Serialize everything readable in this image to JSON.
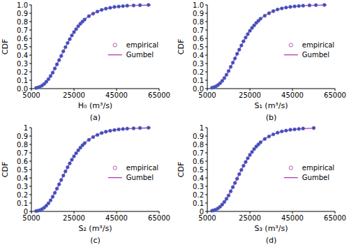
{
  "chart_data": [
    {
      "type": "line",
      "title": "(a)",
      "x_label": "H₀ (m³/s)",
      "y_label": "CDF",
      "xlim": [
        5000,
        65000
      ],
      "xticks": [
        5000,
        25000,
        45000,
        65000
      ],
      "ylim": [
        0,
        1
      ],
      "yticks": [
        {
          "value": 0,
          "label": "0.0"
        },
        0.1,
        0.2,
        0.3,
        0.4,
        0.5,
        0.6,
        0.7,
        0.8,
        0.9,
        {
          "value": 1,
          "label": "1.0"
        }
      ],
      "grid": false,
      "legend": "right",
      "series": [
        {
          "name": "empirical",
          "type": "scatter",
          "marker": "circle",
          "color": "#3b4fb8",
          "x": [
            7200,
            8000,
            9000,
            10000,
            11000,
            12000,
            13000,
            14000,
            15000,
            16000,
            17000,
            18000,
            19000,
            20000,
            21000,
            22000,
            23000,
            24000,
            25000,
            26000,
            27000,
            28000,
            29000,
            30000,
            32000,
            34000,
            36000,
            38000,
            40000,
            42000,
            44000,
            46000,
            48000,
            50000,
            53000,
            56000,
            60000
          ],
          "values": [
            0.008,
            0.013,
            0.022,
            0.036,
            0.056,
            0.082,
            0.113,
            0.15,
            0.19,
            0.24,
            0.29,
            0.34,
            0.39,
            0.445,
            0.495,
            0.545,
            0.59,
            0.635,
            0.675,
            0.71,
            0.745,
            0.775,
            0.8,
            0.825,
            0.865,
            0.895,
            0.92,
            0.94,
            0.955,
            0.965,
            0.975,
            0.98,
            0.985,
            0.99,
            0.993,
            0.996,
            0.999
          ]
        },
        {
          "name": "Gumbel",
          "type": "line",
          "line_style": "solid",
          "color": "#b03cb0",
          "x": [
            7000,
            9000,
            11000,
            13000,
            15000,
            17000,
            19000,
            21000,
            23000,
            25000,
            27000,
            29000,
            31000,
            33000,
            35000,
            38000,
            41000,
            44000,
            47000,
            50000,
            54000,
            58000,
            61000
          ],
          "values": [
            0.006,
            0.021,
            0.054,
            0.111,
            0.192,
            0.29,
            0.394,
            0.497,
            0.591,
            0.674,
            0.743,
            0.8,
            0.846,
            0.882,
            0.91,
            0.94,
            0.961,
            0.974,
            0.983,
            0.989,
            0.994,
            0.996,
            0.998
          ]
        }
      ]
    },
    {
      "type": "line",
      "title": "(b)",
      "x_label": "S₁ (m³/s)",
      "y_label": "CDF",
      "xlim": [
        5000,
        65000
      ],
      "xticks": [
        5000,
        25000,
        45000,
        65000
      ],
      "ylim": [
        0,
        1
      ],
      "yticks": [
        {
          "value": 0,
          "label": "0.0"
        },
        0.1,
        0.2,
        0.3,
        0.4,
        0.5,
        0.6,
        0.7,
        0.8,
        0.9,
        {
          "value": 1,
          "label": "1.0"
        }
      ],
      "grid": false,
      "legend": "right",
      "series": [
        {
          "name": "empirical",
          "type": "scatter",
          "marker": "circle",
          "color": "#3b4fb8",
          "x": [
            7200,
            8000,
            9000,
            10000,
            11000,
            12000,
            13000,
            14000,
            15000,
            16000,
            17000,
            18000,
            19000,
            20000,
            21000,
            22000,
            23000,
            24000,
            25000,
            26000,
            27000,
            28000,
            29000,
            30000,
            32000,
            34000,
            36000,
            38000,
            40000,
            42000,
            44000,
            46000,
            48000,
            50000,
            53000,
            56000,
            60000
          ],
          "values": [
            0.01,
            0.016,
            0.026,
            0.042,
            0.064,
            0.092,
            0.126,
            0.165,
            0.21,
            0.26,
            0.31,
            0.36,
            0.415,
            0.465,
            0.515,
            0.565,
            0.61,
            0.65,
            0.69,
            0.725,
            0.755,
            0.785,
            0.81,
            0.835,
            0.87,
            0.9,
            0.925,
            0.945,
            0.958,
            0.968,
            0.976,
            0.982,
            0.986,
            0.99,
            0.994,
            0.997,
            0.999
          ]
        },
        {
          "name": "Gumbel",
          "type": "line",
          "line_style": "solid",
          "color": "#b03cb0",
          "x": [
            7000,
            9000,
            11000,
            13000,
            15000,
            17000,
            19000,
            21000,
            23000,
            25000,
            27000,
            29000,
            31000,
            33000,
            35000,
            38000,
            41000,
            44000,
            47000,
            50000,
            54000,
            58000,
            61000
          ],
          "values": [
            0.008,
            0.026,
            0.063,
            0.125,
            0.21,
            0.31,
            0.415,
            0.515,
            0.61,
            0.69,
            0.755,
            0.81,
            0.855,
            0.89,
            0.915,
            0.945,
            0.963,
            0.976,
            0.984,
            0.99,
            0.994,
            0.997,
            0.998
          ]
        }
      ]
    },
    {
      "type": "line",
      "title": "(c)",
      "x_label": "S₂ (m³/s)",
      "y_label": "CDF",
      "xlim": [
        5000,
        65000
      ],
      "xticks": [
        5000,
        25000,
        45000,
        65000
      ],
      "ylim": [
        0,
        1
      ],
      "yticks": [
        0,
        0.1,
        0.2,
        0.3,
        0.4,
        0.5,
        0.6,
        0.7,
        0.8,
        0.9,
        1
      ],
      "grid": false,
      "legend": "right",
      "series": [
        {
          "name": "empirical",
          "type": "scatter",
          "marker": "circle",
          "color": "#3b4fb8",
          "x": [
            7200,
            8000,
            9000,
            10000,
            11000,
            12000,
            13000,
            14000,
            15000,
            16000,
            17000,
            18000,
            19000,
            20000,
            21000,
            22000,
            23000,
            24000,
            25000,
            26000,
            27000,
            28000,
            29000,
            30000,
            32000,
            34000,
            36000,
            38000,
            40000,
            42000,
            44000,
            46000,
            48000,
            50000,
            53000,
            56000,
            60000
          ],
          "values": [
            0.004,
            0.008,
            0.015,
            0.027,
            0.044,
            0.068,
            0.097,
            0.133,
            0.175,
            0.222,
            0.272,
            0.323,
            0.375,
            0.428,
            0.478,
            0.527,
            0.573,
            0.617,
            0.658,
            0.695,
            0.73,
            0.761,
            0.79,
            0.815,
            0.855,
            0.888,
            0.913,
            0.936,
            0.952,
            0.963,
            0.972,
            0.979,
            0.984,
            0.988,
            0.992,
            0.996,
            0.999
          ]
        },
        {
          "name": "Gumbel",
          "type": "line",
          "line_style": "solid",
          "color": "#b03cb0",
          "x": [
            7000,
            9000,
            11000,
            13000,
            15000,
            17000,
            19000,
            21000,
            23000,
            25000,
            27000,
            29000,
            31000,
            33000,
            35000,
            38000,
            41000,
            44000,
            47000,
            50000,
            54000,
            58000,
            61000
          ],
          "values": [
            0.003,
            0.015,
            0.044,
            0.097,
            0.175,
            0.272,
            0.375,
            0.478,
            0.573,
            0.658,
            0.73,
            0.79,
            0.837,
            0.875,
            0.905,
            0.936,
            0.958,
            0.972,
            0.982,
            0.988,
            0.993,
            0.996,
            0.998
          ]
        }
      ]
    },
    {
      "type": "line",
      "title": "(d)",
      "x_label": "S₃ (m³/s)",
      "y_label": "CDF",
      "xlim": [
        5000,
        65000
      ],
      "xticks": [
        5000,
        25000,
        45000,
        65000
      ],
      "ylim": [
        0,
        1
      ],
      "yticks": [
        0,
        0.1,
        0.2,
        0.3,
        0.4,
        0.5,
        0.6,
        0.7,
        0.8,
        0.9,
        1
      ],
      "grid": false,
      "legend": "right",
      "series": [
        {
          "name": "empirical",
          "type": "scatter",
          "marker": "circle",
          "color": "#3b4fb8",
          "x": [
            7200,
            8000,
            9000,
            10000,
            11000,
            12000,
            13000,
            14000,
            15000,
            16000,
            17000,
            18000,
            19000,
            20000,
            21000,
            22000,
            23000,
            24000,
            25000,
            26000,
            27000,
            28000,
            29000,
            30000,
            32000,
            34000,
            36000,
            38000,
            40000,
            42000,
            44000,
            46000,
            48000,
            50000,
            55000
          ],
          "values": [
            0.008,
            0.013,
            0.022,
            0.036,
            0.056,
            0.082,
            0.113,
            0.15,
            0.19,
            0.24,
            0.29,
            0.34,
            0.39,
            0.445,
            0.495,
            0.545,
            0.59,
            0.635,
            0.675,
            0.71,
            0.745,
            0.775,
            0.8,
            0.825,
            0.865,
            0.895,
            0.92,
            0.94,
            0.955,
            0.965,
            0.975,
            0.98,
            0.985,
            0.99,
            0.996
          ]
        },
        {
          "name": "Gumbel",
          "type": "line",
          "line_style": "solid",
          "color": "#b03cb0",
          "x": [
            7000,
            9000,
            11000,
            13000,
            15000,
            17000,
            19000,
            21000,
            23000,
            25000,
            27000,
            29000,
            31000,
            33000,
            35000,
            38000,
            41000,
            44000,
            47000,
            50000,
            55000
          ],
          "values": [
            0.006,
            0.021,
            0.054,
            0.111,
            0.192,
            0.29,
            0.394,
            0.497,
            0.591,
            0.674,
            0.743,
            0.8,
            0.846,
            0.882,
            0.91,
            0.94,
            0.961,
            0.974,
            0.983,
            0.989,
            0.995
          ]
        }
      ]
    }
  ]
}
